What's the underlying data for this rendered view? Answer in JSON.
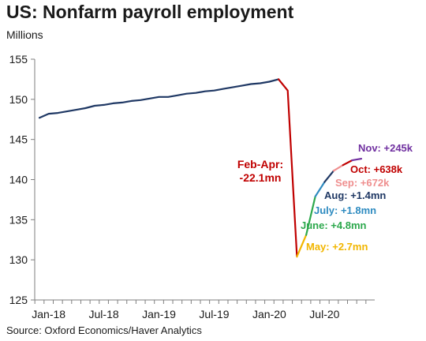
{
  "title": "US: Nonfarm payroll employment",
  "units_label": "Millions",
  "source": "Source: Oxford Economics/Haver Analytics",
  "chart_data": {
    "type": "line",
    "title": "US: Nonfarm payroll employment",
    "ylabel": "Millions",
    "xlabel": "",
    "ylim": [
      125,
      155
    ],
    "yticks": [
      125,
      130,
      135,
      140,
      145,
      150,
      155
    ],
    "xlim": [
      "2017-12",
      "2020-11"
    ],
    "xticks": [
      {
        "date": "2018-01",
        "label": "Jan-18"
      },
      {
        "date": "2018-07",
        "label": "Jul-18"
      },
      {
        "date": "2019-01",
        "label": "Jan-19"
      },
      {
        "date": "2019-07",
        "label": "Jul-19"
      },
      {
        "date": "2020-01",
        "label": "Jan-20"
      },
      {
        "date": "2020-07",
        "label": "Jul-20"
      }
    ],
    "grid": false,
    "legend": "none",
    "series": [
      {
        "color": "#1f3864",
        "points": [
          [
            "2017-12",
            147.7
          ],
          [
            "2018-01",
            148.2
          ],
          [
            "2018-02",
            148.3
          ],
          [
            "2018-03",
            148.5
          ],
          [
            "2018-04",
            148.7
          ],
          [
            "2018-05",
            148.9
          ],
          [
            "2018-06",
            149.2
          ],
          [
            "2018-07",
            149.3
          ],
          [
            "2018-08",
            149.5
          ],
          [
            "2018-09",
            149.6
          ],
          [
            "2018-10",
            149.8
          ],
          [
            "2018-11",
            149.9
          ],
          [
            "2018-12",
            150.1
          ],
          [
            "2019-01",
            150.3
          ],
          [
            "2019-02",
            150.3
          ],
          [
            "2019-03",
            150.5
          ],
          [
            "2019-04",
            150.7
          ],
          [
            "2019-05",
            150.8
          ],
          [
            "2019-06",
            151.0
          ],
          [
            "2019-07",
            151.1
          ],
          [
            "2019-08",
            151.3
          ],
          [
            "2019-09",
            151.5
          ],
          [
            "2019-10",
            151.7
          ],
          [
            "2019-11",
            151.9
          ],
          [
            "2019-12",
            152.0
          ],
          [
            "2020-01",
            152.2
          ],
          [
            "2020-02",
            152.5
          ]
        ]
      },
      {
        "color": "#c00000",
        "points": [
          [
            "2020-02",
            152.5
          ],
          [
            "2020-03",
            151.1
          ],
          [
            "2020-04",
            130.4
          ]
        ]
      },
      {
        "color": "#f2b600",
        "points": [
          [
            "2020-04",
            130.4
          ],
          [
            "2020-05",
            133.1
          ]
        ]
      },
      {
        "color": "#2ca84c",
        "points": [
          [
            "2020-05",
            133.1
          ],
          [
            "2020-06",
            137.9
          ]
        ]
      },
      {
        "color": "#2e8bc0",
        "points": [
          [
            "2020-06",
            137.9
          ],
          [
            "2020-07",
            139.7
          ]
        ]
      },
      {
        "color": "#1f3864",
        "points": [
          [
            "2020-07",
            139.7
          ],
          [
            "2020-08",
            141.1
          ]
        ]
      },
      {
        "color": "#ef8f8f",
        "points": [
          [
            "2020-08",
            141.1
          ],
          [
            "2020-09",
            141.8
          ]
        ]
      },
      {
        "color": "#c00000",
        "points": [
          [
            "2020-09",
            141.8
          ],
          [
            "2020-10",
            142.4
          ]
        ]
      },
      {
        "color": "#7030a0",
        "points": [
          [
            "2020-10",
            142.4
          ],
          [
            "2020-11",
            142.6
          ]
        ]
      }
    ],
    "annotations": [
      {
        "lines": [
          "Feb-Apr:",
          "-22.1mn"
        ],
        "color": "#c00000"
      },
      {
        "lines": [
          "Nov: +245k"
        ],
        "color": "#7030a0"
      },
      {
        "lines": [
          "Oct: +638k"
        ],
        "color": "#c00000"
      },
      {
        "lines": [
          "Sep: +672k"
        ],
        "color": "#ef8f8f"
      },
      {
        "lines": [
          "Aug: +1.4mn"
        ],
        "color": "#1f3864"
      },
      {
        "lines": [
          "July: +1.8mn"
        ],
        "color": "#2e8bc0"
      },
      {
        "lines": [
          "June: +4.8mn"
        ],
        "color": "#2ca84c"
      },
      {
        "lines": [
          "May: +2.7mn"
        ],
        "color": "#f2b600"
      }
    ]
  }
}
